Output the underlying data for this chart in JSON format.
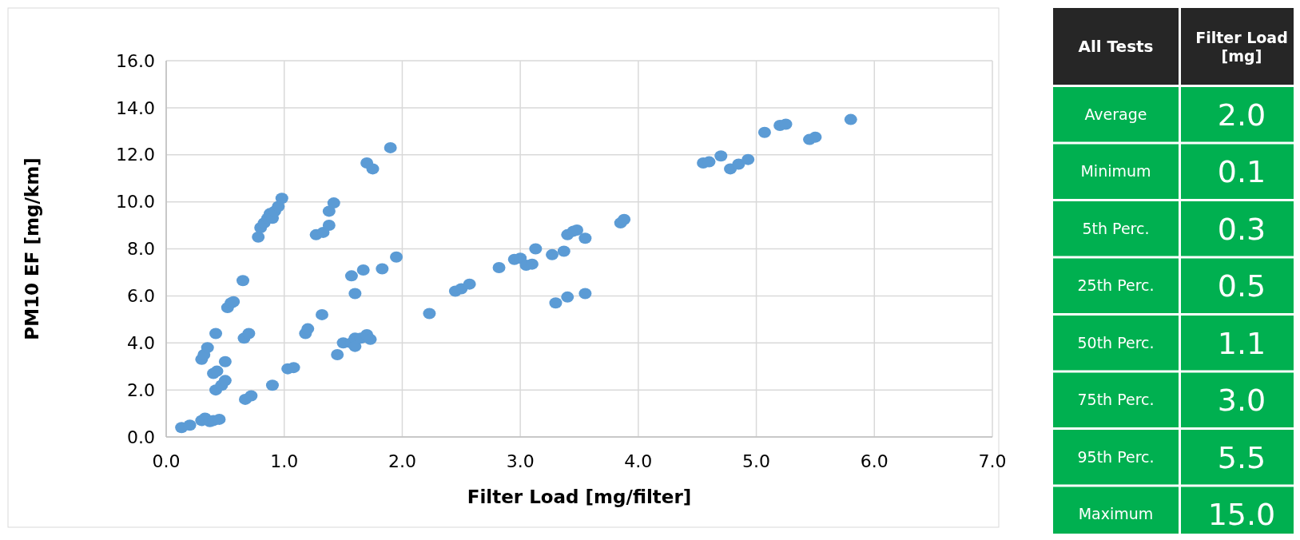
{
  "chart_data": [
    {
      "type": "scatter",
      "xlabel": "Filter Load [mg/filter]",
      "ylabel": "PM10 EF [mg/km]",
      "xlim": [
        0,
        7
      ],
      "ylim": [
        0,
        16
      ],
      "xticks": [
        {
          "value": 0,
          "label": "0.0"
        },
        {
          "value": 1,
          "label": "1.0"
        },
        {
          "value": 2,
          "label": "2.0"
        },
        {
          "value": 3,
          "label": "3.0"
        },
        {
          "value": 4,
          "label": "4.0"
        },
        {
          "value": 5,
          "label": "5.0"
        },
        {
          "value": 6,
          "label": "6.0"
        },
        {
          "value": 7,
          "label": "7.0"
        }
      ],
      "yticks": [
        {
          "value": 0,
          "label": "0.0"
        },
        {
          "value": 2,
          "label": "2.0"
        },
        {
          "value": 4,
          "label": "4.0"
        },
        {
          "value": 6,
          "label": "6.0"
        },
        {
          "value": 8,
          "label": "8.0"
        },
        {
          "value": 10,
          "label": "10.0"
        },
        {
          "value": 12,
          "label": "12.0"
        },
        {
          "value": 14,
          "label": "14.0"
        },
        {
          "value": 16,
          "label": "16.0"
        }
      ],
      "grid": true,
      "marker": "circle",
      "series": [
        {
          "color": "#5b9bd5",
          "x": [
            0.13,
            0.2,
            0.3,
            0.33,
            0.37,
            0.4,
            0.45,
            0.3,
            0.32,
            0.35,
            0.42,
            0.4,
            0.43,
            0.42,
            0.47,
            0.5,
            0.5,
            0.52,
            0.55,
            0.57,
            0.65,
            0.66,
            0.7,
            0.67,
            0.72,
            0.78,
            0.8,
            0.83,
            0.86,
            0.88,
            0.9,
            0.92,
            0.95,
            0.98,
            0.9,
            1.03,
            1.08,
            1.18,
            1.2,
            1.27,
            1.33,
            1.38,
            1.38,
            1.42,
            1.32,
            1.45,
            1.5,
            1.57,
            1.6,
            1.6,
            1.65,
            1.7,
            1.73,
            1.57,
            1.6,
            1.67,
            1.83,
            1.7,
            1.75,
            1.9,
            1.95,
            2.23,
            2.45,
            2.5,
            2.57,
            2.82,
            2.95,
            3.0,
            3.05,
            3.1,
            3.13,
            3.27,
            3.37,
            3.4,
            3.45,
            3.48,
            3.55,
            3.3,
            3.4,
            3.55,
            3.85,
            3.88,
            4.55,
            4.6,
            4.7,
            4.78,
            4.85,
            4.93,
            5.07,
            5.2,
            5.25,
            5.45,
            5.5,
            5.8
          ],
          "values": [
            0.4,
            0.5,
            0.7,
            0.8,
            0.65,
            0.7,
            0.75,
            3.3,
            3.5,
            3.8,
            4.4,
            2.7,
            2.8,
            2.0,
            2.2,
            2.4,
            3.2,
            5.5,
            5.7,
            5.75,
            6.65,
            4.2,
            4.4,
            1.6,
            1.75,
            8.5,
            8.9,
            9.1,
            9.3,
            9.5,
            9.3,
            9.6,
            9.8,
            10.15,
            2.2,
            2.9,
            2.95,
            4.4,
            4.6,
            8.6,
            8.7,
            9.0,
            9.6,
            9.95,
            5.2,
            3.5,
            4.0,
            4.0,
            4.2,
            3.85,
            4.2,
            4.35,
            4.15,
            6.85,
            6.1,
            7.1,
            7.15,
            11.65,
            11.4,
            12.3,
            7.65,
            5.25,
            6.2,
            6.3,
            6.5,
            7.2,
            7.55,
            7.6,
            7.3,
            7.35,
            8.0,
            7.75,
            7.9,
            8.6,
            8.75,
            8.8,
            8.45,
            5.7,
            5.95,
            6.1,
            9.1,
            9.25,
            11.65,
            11.7,
            11.95,
            11.4,
            11.6,
            11.8,
            12.95,
            13.25,
            13.3,
            12.65,
            12.75,
            13.5
          ]
        }
      ]
    },
    {
      "type": "other",
      "xlabel": "All Tests",
      "ylabel": "Filter Load [mg]",
      "categories": [
        "Average",
        "Minimum",
        "5th Perc.",
        "25th Perc.",
        "50th Perc.",
        "75th Perc.",
        "95th Perc.",
        "Maximum"
      ],
      "value_labels": [
        "2.0",
        "0.1",
        "0.3",
        "0.5",
        "1.1",
        "3.0",
        "5.5",
        "15.0"
      ],
      "colors": [
        "#00b050",
        "#00b050",
        "#00b050",
        "#00b050",
        "#00b050",
        "#00b050",
        "#00b050",
        "#00b050"
      ]
    }
  ]
}
